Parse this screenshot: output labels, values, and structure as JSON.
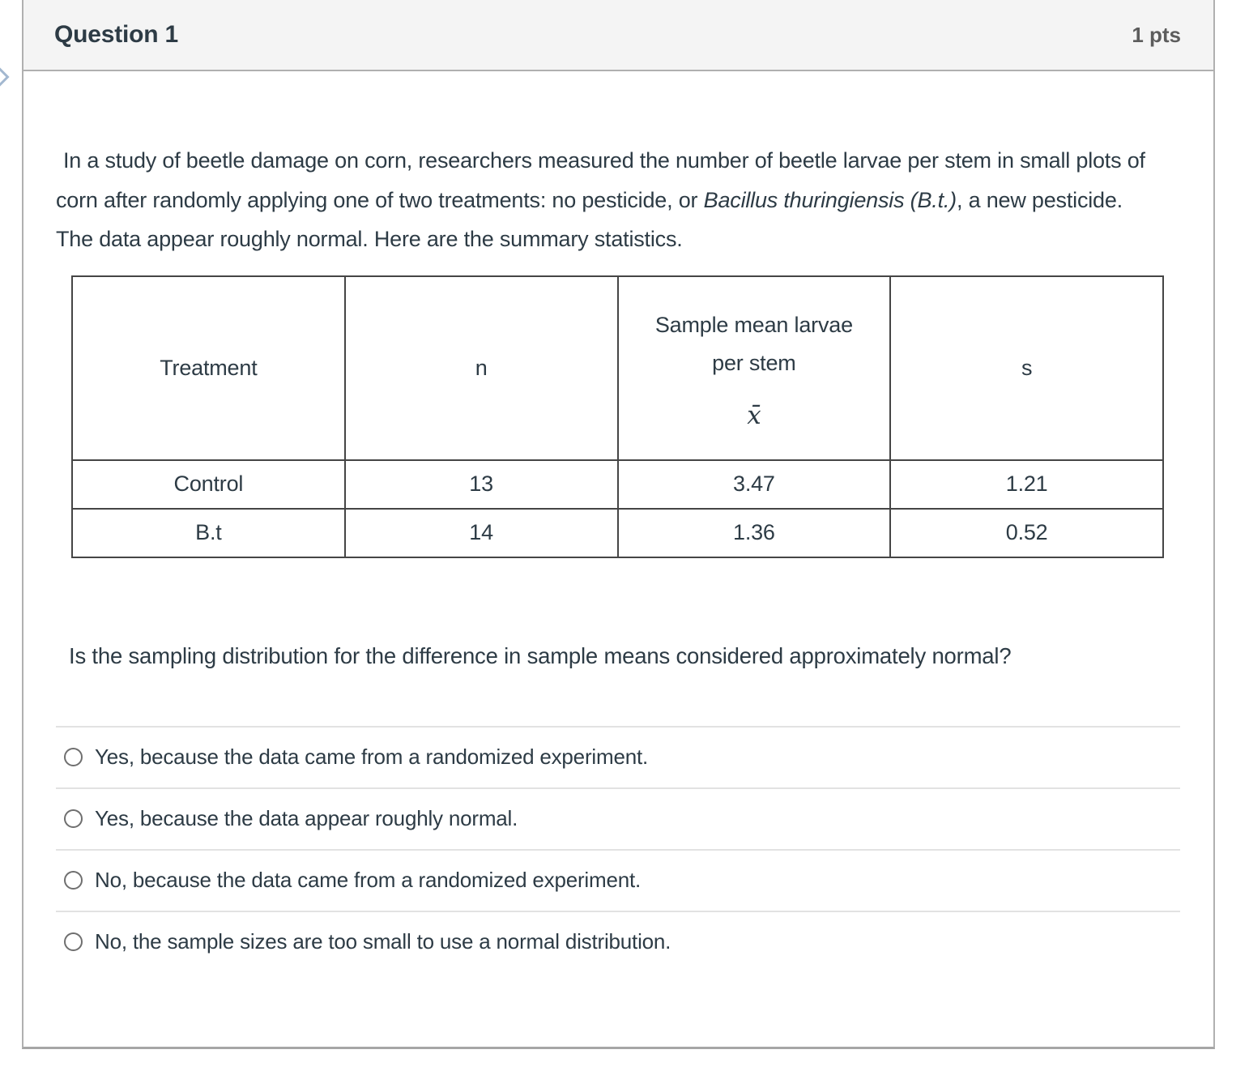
{
  "header": {
    "title": "Question 1",
    "points": "1 pts"
  },
  "question": {
    "intro_before_italic": "In a study of beetle damage on corn, researchers measured the number of beetle larvae per stem in small plots of corn after randomly applying one of two treatments: no pesticide, or ",
    "intro_italic": "Bacillus thuringiensis (B.t.)",
    "intro_after_italic": ", a new pesticide. The data appear roughly normal. Here are the summary statistics.",
    "prompt": "Is the sampling distribution for the difference in sample means considered approximately normal?"
  },
  "table": {
    "headers": {
      "treatment": "Treatment",
      "n": "n",
      "mean_line1": "Sample mean larvae",
      "mean_line2": "per stem",
      "mean_symbol": "x̄",
      "s": "s"
    },
    "rows": [
      {
        "treatment": "Control",
        "n": "13",
        "mean": "3.47",
        "s": "1.21"
      },
      {
        "treatment": "B.t",
        "n": "14",
        "mean": "1.36",
        "s": "0.52"
      }
    ]
  },
  "options": [
    {
      "label": "Yes, because the data came from a randomized experiment."
    },
    {
      "label": "Yes, because the data appear roughly normal."
    },
    {
      "label": "No, because the data came from a randomized experiment."
    },
    {
      "label": "No, the sample sizes are too small to use a normal distribution."
    }
  ],
  "colors": {
    "text": "#2d3b45",
    "header_bg": "#f4f4f4",
    "card_border": "#b0b0b0",
    "table_border": "#454545",
    "option_divider": "#e2e2e2",
    "radio_border": "#6f6f6f",
    "chevron": "#a3b8d0"
  }
}
